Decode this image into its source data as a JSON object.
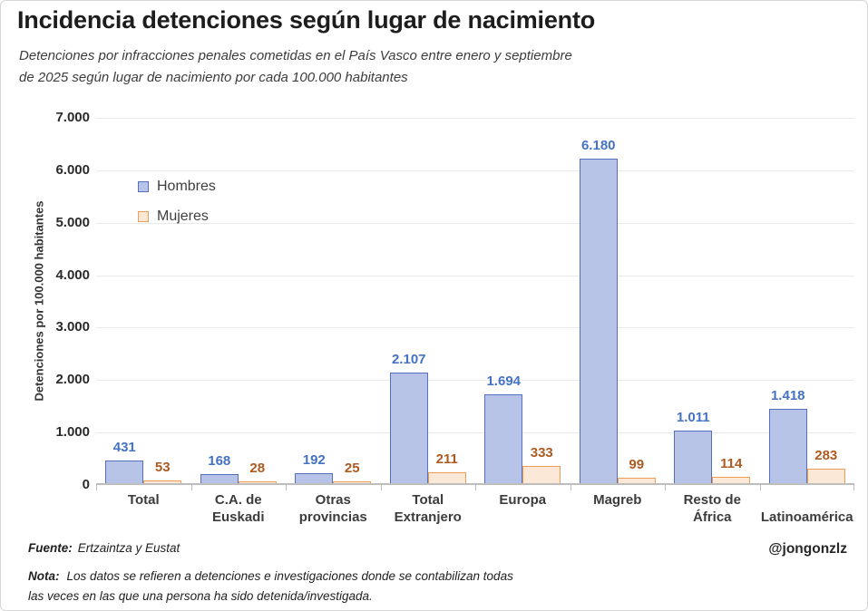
{
  "title": "Incidencia detenciones según lugar de nacimiento",
  "subtitle_line1": "Detenciones por infracciones penales cometidas en el País Vasco entre enero y septiembre",
  "subtitle_line2": "de 2025 según lugar de nacimiento por cada 100.000 habitantes",
  "footer": {
    "source_label": "Fuente:",
    "source_text": "Ertzaintza y Eustat",
    "handle": "@jongonzlz",
    "note_label": "Nota:",
    "note_line1": "Los datos se refieren a detenciones e investigaciones donde se contabilizan todas",
    "note_line2": "las veces en las que una persona ha sido detenida/investigada."
  },
  "chart_data": {
    "type": "bar",
    "title": "Incidencia detenciones según lugar de nacimiento",
    "xlabel": "",
    "ylabel": "Detenciones por 100.000 habitantes",
    "ylim": [
      0,
      7000
    ],
    "ytick_interval": 1000,
    "ytick_labels": [
      "0",
      "1.000",
      "2.000",
      "3.000",
      "4.000",
      "5.000",
      "6.000",
      "7.000"
    ],
    "grid": true,
    "legend_position": "upper-left-inside",
    "categories": [
      "Total",
      "C.A. de Euskadi",
      "Otras provincias",
      "Total Extranjero",
      "Europa",
      "Magreb",
      "Resto de África",
      "Latinoamérica"
    ],
    "category_label_lines": [
      [
        "Total",
        ""
      ],
      [
        "C.A. de",
        "Euskadi"
      ],
      [
        "Otras",
        "provincias"
      ],
      [
        "Total",
        "Extranjero"
      ],
      [
        "Europa",
        ""
      ],
      [
        "Magreb",
        ""
      ],
      [
        "Resto de",
        "África"
      ],
      [
        "",
        "Latinoamérica"
      ]
    ],
    "series": [
      {
        "name": "Hombres",
        "values": [
          431,
          168,
          192,
          2107,
          1694,
          6180,
          1011,
          1418
        ],
        "labels": [
          "431",
          "168",
          "192",
          "2.107",
          "1.694",
          "6.180",
          "1.011",
          "1.418"
        ],
        "fill": "#b8c3e8",
        "border": "#5470bd",
        "label_color": "#4472c4"
      },
      {
        "name": "Mujeres",
        "values": [
          53,
          28,
          25,
          211,
          333,
          99,
          114,
          283
        ],
        "labels": [
          "53",
          "28",
          "25",
          "211",
          "333",
          "99",
          "114",
          "283"
        ],
        "fill": "#fce8d6",
        "border": "#ef9c54",
        "label_color": "#ad5a21"
      }
    ]
  },
  "colors": {
    "gridline": "#e9e9e9",
    "axis_line": "#bdbdbd",
    "title_text": "#1d1d1d",
    "subtitle_text": "#3c3c3c"
  }
}
